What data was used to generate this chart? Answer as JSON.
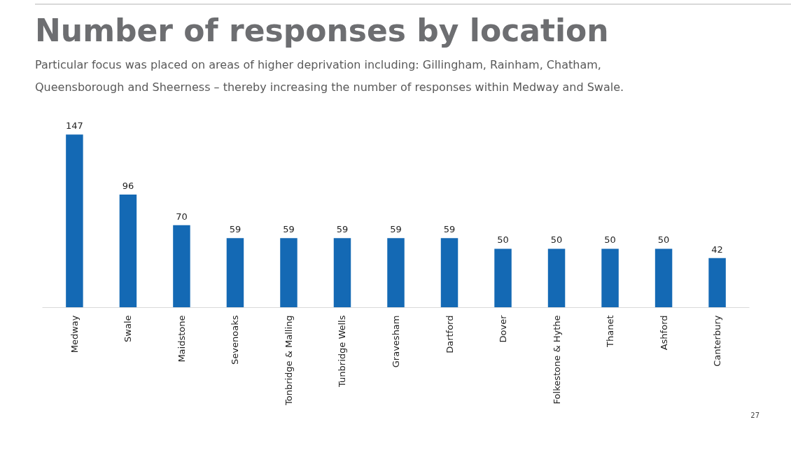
{
  "chart_data": {
    "type": "bar",
    "title": "Number of responses by location",
    "subtitle": "Particular focus was placed on areas of higher deprivation including: Gillingham, Rainham, Chatham, Queensborough and Sheerness – thereby increasing the number of responses within Medway and Swale.",
    "categories": [
      "Medway",
      "Swale",
      "Maidstone",
      "Sevenoaks",
      "Tonbridge & Malling",
      "Tunbridge Wells",
      "Gravesham",
      "Dartford",
      "Dover",
      "Folkestone & Hythe",
      "Thanet",
      "Ashford",
      "Canterbury"
    ],
    "values": [
      147,
      96,
      70,
      59,
      59,
      59,
      59,
      59,
      50,
      50,
      50,
      50,
      42
    ],
    "color": "#1469b4",
    "data_labels": true,
    "grid": false,
    "annotations": [
      "27"
    ]
  }
}
